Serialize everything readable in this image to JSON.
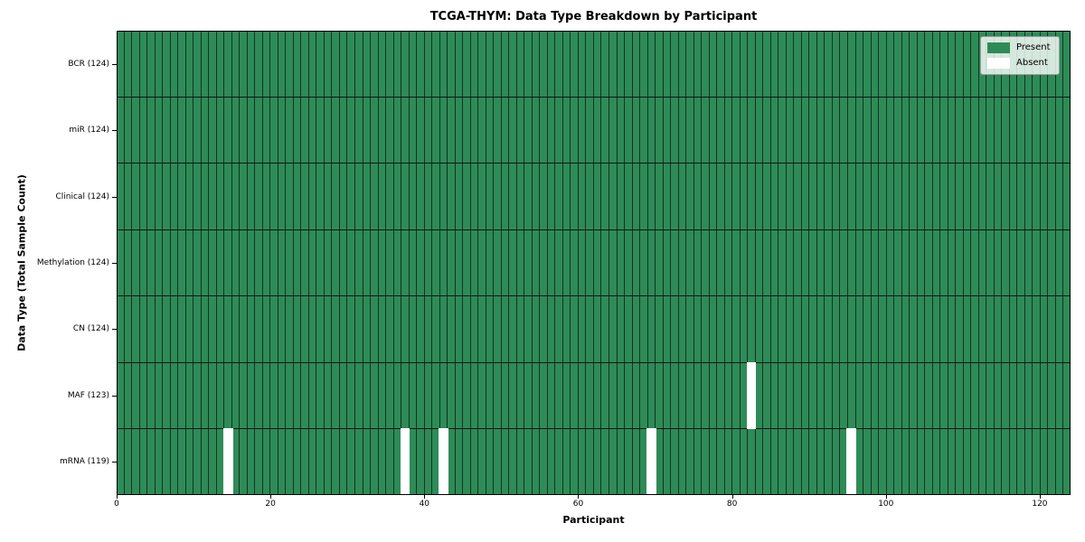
{
  "chart_data": {
    "type": "heatmap",
    "title": "TCGA-THYM: Data Type Breakdown by Participant",
    "xlabel": "Participant",
    "ylabel": "Data Type (Total Sample Count)",
    "xlim": [
      0,
      124
    ],
    "x_ticks": [
      0,
      20,
      40,
      60,
      80,
      100,
      120
    ],
    "n_participants": 124,
    "grid": true,
    "legend_position": "upper-right",
    "legend_entries": [
      {
        "label": "Present",
        "color": "#2e8b57"
      },
      {
        "label": "Absent",
        "color": "#ffffff"
      }
    ],
    "rows": [
      {
        "label": "BCR (124)",
        "data_type": "BCR",
        "present_count": 124,
        "absent_participants": []
      },
      {
        "label": "miR (124)",
        "data_type": "miR",
        "present_count": 124,
        "absent_participants": []
      },
      {
        "label": "Clinical (124)",
        "data_type": "Clinical",
        "present_count": 124,
        "absent_participants": []
      },
      {
        "label": "Methylation (124)",
        "data_type": "Methylation",
        "present_count": 124,
        "absent_participants": []
      },
      {
        "label": "CN (124)",
        "data_type": "CN",
        "present_count": 124,
        "absent_participants": []
      },
      {
        "label": "MAF (123)",
        "data_type": "MAF",
        "present_count": 123,
        "absent_participants": [
          82
        ]
      },
      {
        "label": "mRNA (119)",
        "data_type": "mRNA",
        "present_count": 119,
        "absent_participants": [
          14,
          37,
          42,
          69,
          95
        ]
      }
    ],
    "colors": {
      "present": "#2e8b57",
      "absent": "#ffffff",
      "cell_border": "rgba(0,0,0,0.62)",
      "row_border": "#141414",
      "spine": "#000000"
    }
  }
}
